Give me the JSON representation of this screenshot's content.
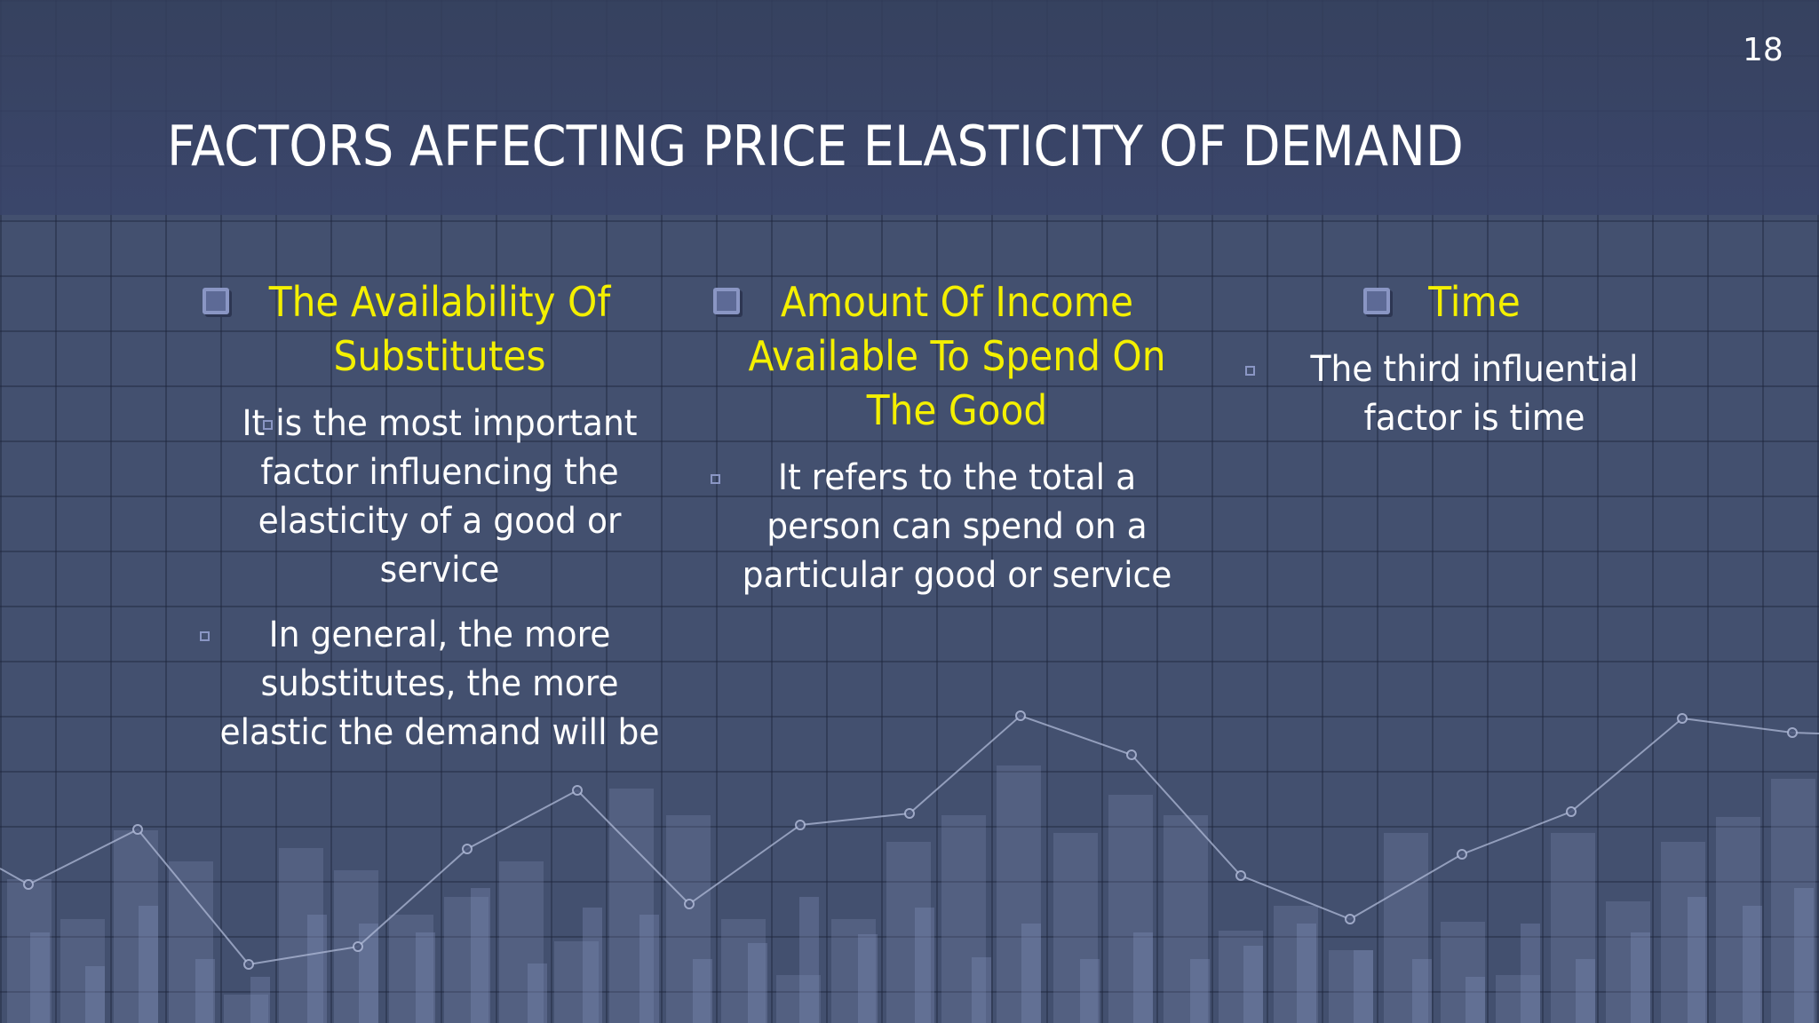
{
  "slide": {
    "title": "FACTORS AFFECTING PRICE ELASTICITY OF DEMAND",
    "number": "18"
  },
  "columns": [
    {
      "heading": "The Availability Of Substitutes",
      "bullets": [
        "It is the most important factor influencing the elasticity of a good or service",
        "In general, the more substitutes, the more elastic the demand will be"
      ]
    },
    {
      "heading": "Amount Of Income Available To Spend On The Good",
      "bullets": [
        "It refers to the total a person can spend on a particular good or service"
      ]
    },
    {
      "heading": "Time",
      "bullets": [
        "The third influential factor is time"
      ]
    }
  ],
  "colors": {
    "heading": "#f4f000",
    "text": "#ffffff",
    "background": "#43506f",
    "bullet": "#8a96c4"
  },
  "icons": {
    "heading_bullet": "checkbox-square-icon",
    "text_bullet": "small-square-icon"
  }
}
